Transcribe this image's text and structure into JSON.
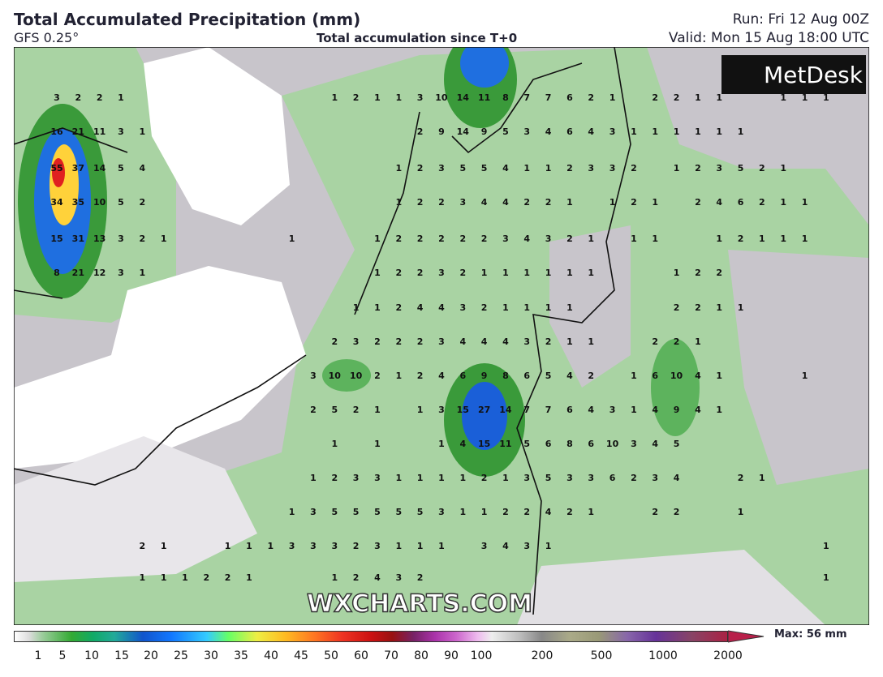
{
  "header": {
    "title": "Total Accumulated Precipitation (mm)",
    "model": "GFS 0.25°",
    "subtitle": "Total accumulation since T+0",
    "run": "Run: Fri 12 Aug 00Z",
    "valid": "Valid: Mon 15 Aug 18:00 UTC"
  },
  "logo": "MetDesk",
  "watermark": "WXCHARTS.COM",
  "grid": {
    "rows": [
      [
        3,
        2,
        2,
        1,
        null,
        null,
        null,
        null,
        null,
        null,
        null,
        null,
        null,
        1,
        2,
        1,
        1,
        3,
        10,
        14,
        11,
        8,
        7,
        7,
        6,
        2,
        1,
        null,
        2,
        2,
        1,
        1,
        null,
        null,
        1,
        1,
        1
      ],
      [
        16,
        21,
        11,
        3,
        1,
        null,
        null,
        null,
        null,
        null,
        null,
        null,
        null,
        null,
        null,
        null,
        null,
        2,
        9,
        14,
        9,
        5,
        3,
        4,
        6,
        4,
        3,
        1,
        1,
        1,
        1,
        1,
        1,
        null,
        null,
        null,
        null
      ],
      [
        55,
        37,
        14,
        5,
        4,
        null,
        null,
        null,
        null,
        null,
        null,
        null,
        null,
        null,
        null,
        null,
        1,
        2,
        3,
        5,
        5,
        4,
        1,
        1,
        2,
        3,
        3,
        2,
        null,
        1,
        2,
        3,
        5,
        2,
        1,
        null,
        null
      ],
      [
        34,
        35,
        10,
        5,
        2,
        null,
        null,
        null,
        null,
        null,
        null,
        null,
        null,
        null,
        null,
        null,
        1,
        2,
        2,
        3,
        4,
        4,
        2,
        2,
        1,
        null,
        1,
        2,
        1,
        null,
        2,
        4,
        6,
        2,
        1,
        1,
        null
      ],
      [
        15,
        31,
        13,
        3,
        2,
        1,
        null,
        null,
        null,
        null,
        null,
        1,
        null,
        null,
        null,
        1,
        2,
        2,
        2,
        2,
        2,
        3,
        4,
        3,
        2,
        1,
        null,
        1,
        1,
        null,
        null,
        1,
        2,
        1,
        1,
        1,
        null
      ],
      [
        8,
        21,
        12,
        3,
        1,
        null,
        null,
        null,
        null,
        null,
        null,
        null,
        null,
        null,
        null,
        1,
        2,
        2,
        3,
        2,
        1,
        1,
        1,
        1,
        1,
        1,
        null,
        null,
        null,
        1,
        2,
        2,
        null,
        null,
        null,
        null,
        null
      ],
      [
        null,
        null,
        null,
        null,
        null,
        null,
        null,
        null,
        null,
        null,
        null,
        null,
        null,
        null,
        1,
        1,
        2,
        4,
        4,
        3,
        2,
        1,
        1,
        1,
        1,
        null,
        null,
        null,
        null,
        2,
        2,
        1,
        1,
        null,
        null,
        null,
        null
      ],
      [
        null,
        null,
        null,
        null,
        null,
        null,
        null,
        null,
        null,
        null,
        null,
        null,
        null,
        2,
        3,
        2,
        2,
        2,
        3,
        4,
        4,
        4,
        3,
        2,
        1,
        1,
        null,
        null,
        2,
        2,
        1,
        null,
        null,
        null,
        null,
        null,
        null
      ],
      [
        null,
        null,
        null,
        null,
        null,
        null,
        null,
        null,
        null,
        null,
        null,
        null,
        3,
        10,
        10,
        2,
        1,
        2,
        4,
        6,
        9,
        8,
        6,
        5,
        4,
        2,
        null,
        1,
        6,
        10,
        4,
        1,
        null,
        null,
        null,
        1,
        null
      ],
      [
        null,
        null,
        null,
        null,
        null,
        null,
        null,
        null,
        null,
        null,
        null,
        null,
        2,
        5,
        2,
        1,
        null,
        1,
        3,
        15,
        27,
        14,
        7,
        7,
        6,
        4,
        3,
        1,
        4,
        9,
        4,
        1,
        null,
        null,
        null,
        null,
        null
      ],
      [
        null,
        null,
        null,
        null,
        null,
        null,
        null,
        null,
        null,
        null,
        null,
        null,
        null,
        1,
        null,
        1,
        null,
        null,
        1,
        4,
        15,
        11,
        5,
        6,
        8,
        6,
        10,
        3,
        4,
        5,
        null,
        null,
        null,
        null,
        null,
        null,
        null
      ],
      [
        null,
        null,
        null,
        null,
        null,
        null,
        null,
        null,
        null,
        null,
        null,
        null,
        1,
        2,
        3,
        3,
        1,
        1,
        1,
        1,
        2,
        1,
        3,
        5,
        3,
        3,
        6,
        2,
        3,
        4,
        null,
        null,
        2,
        1,
        null,
        null,
        null
      ],
      [
        null,
        null,
        null,
        null,
        null,
        null,
        null,
        null,
        null,
        null,
        null,
        1,
        3,
        5,
        5,
        5,
        5,
        5,
        3,
        1,
        1,
        2,
        2,
        4,
        2,
        1,
        null,
        null,
        2,
        2,
        null,
        null,
        1,
        null,
        null,
        null,
        null
      ],
      [
        null,
        null,
        null,
        null,
        2,
        1,
        null,
        null,
        1,
        1,
        1,
        3,
        3,
        3,
        2,
        3,
        1,
        1,
        1,
        null,
        3,
        4,
        3,
        1,
        null,
        null,
        null,
        null,
        null,
        null,
        null,
        null,
        null,
        null,
        null,
        null,
        1
      ],
      [
        null,
        null,
        null,
        null,
        1,
        1,
        1,
        2,
        2,
        1,
        null,
        null,
        null,
        1,
        2,
        4,
        3,
        2,
        null,
        null,
        null,
        null,
        null,
        null,
        null,
        null,
        null,
        null,
        null,
        null,
        null,
        null,
        null,
        null,
        null,
        null,
        1
      ]
    ]
  },
  "colorbar": {
    "labels": [
      1,
      5,
      10,
      15,
      20,
      25,
      30,
      35,
      40,
      45,
      50,
      60,
      70,
      80,
      90,
      100,
      200,
      500,
      1000,
      2000
    ],
    "max": "Max: 56 mm"
  }
}
